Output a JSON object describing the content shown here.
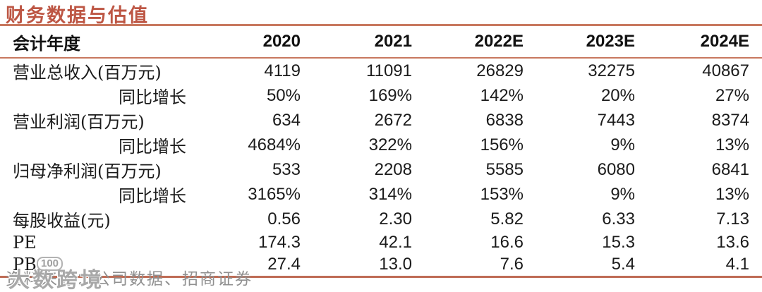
{
  "title": "财务数据与估值",
  "colors": {
    "title_red": "#bd5644",
    "rule_salmon": "#c8785f",
    "rule_bottom": "#bf6c55",
    "body_text": "#1b1b1b",
    "footer_gray": "#909090"
  },
  "table": {
    "header": {
      "label": "会计年度",
      "years": [
        "2020",
        "2021",
        "2022E",
        "2023E",
        "2024E"
      ]
    },
    "rows": [
      {
        "label": "营业总收入(百万元)",
        "indent": false,
        "values": [
          "4119",
          "11091",
          "26829",
          "32275",
          "40867"
        ]
      },
      {
        "label": "同比增长",
        "indent": true,
        "values": [
          "50%",
          "169%",
          "142%",
          "20%",
          "27%"
        ]
      },
      {
        "label": "营业利润(百万元)",
        "indent": false,
        "values": [
          "634",
          "2672",
          "6838",
          "7443",
          "8374"
        ]
      },
      {
        "label": "同比增长",
        "indent": true,
        "values": [
          "4684%",
          "322%",
          "156%",
          "9%",
          "13%"
        ]
      },
      {
        "label": "归母净利润(百万元)",
        "indent": false,
        "values": [
          "533",
          "2208",
          "5585",
          "6080",
          "6841"
        ]
      },
      {
        "label": "同比增长",
        "indent": true,
        "values": [
          "3165%",
          "314%",
          "153%",
          "9%",
          "13%"
        ]
      },
      {
        "label": "每股收益(元)",
        "indent": false,
        "values": [
          "0.56",
          "2.30",
          "5.82",
          "6.33",
          "7.13"
        ]
      },
      {
        "label": "PE",
        "indent": false,
        "values": [
          "174.3",
          "42.1",
          "16.6",
          "15.3",
          "13.6"
        ]
      },
      {
        "label": "PB",
        "indent": false,
        "values": [
          "27.4",
          "13.0",
          "7.6",
          "5.4",
          "4.1"
        ]
      }
    ]
  },
  "footer": {
    "source": "资料来源：公司数据、招商证券"
  },
  "watermark": {
    "text": "大数跨境",
    "badge": "100"
  }
}
